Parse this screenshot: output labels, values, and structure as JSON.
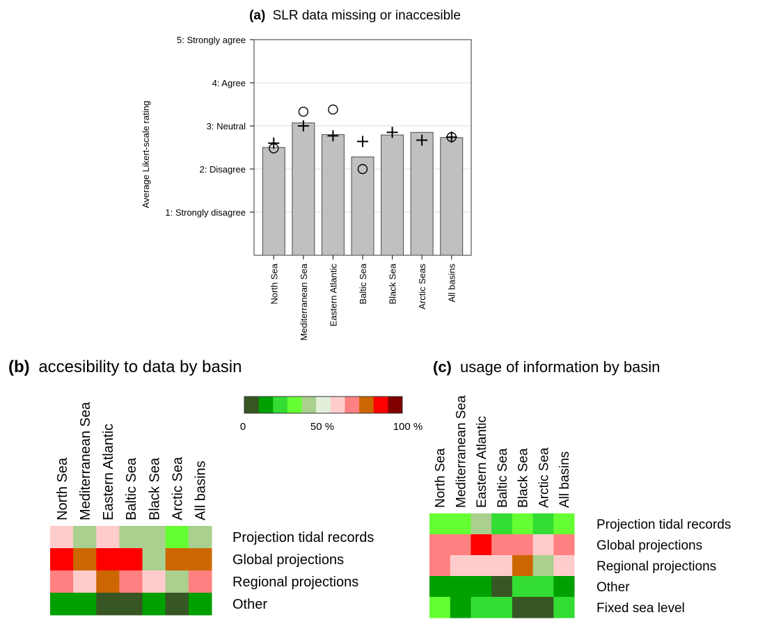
{
  "chart_data": [
    {
      "type": "bar",
      "panel": "(a)",
      "title": "SLR data missing or inaccesible",
      "ylabel": "Average Likert-scale rating",
      "ylim": [
        0,
        5
      ],
      "yticks": [
        {
          "value": 1,
          "label": "1: Strongly disagree"
        },
        {
          "value": 2,
          "label": "2: Disagree"
        },
        {
          "value": 3,
          "label": "3: Neutral"
        },
        {
          "value": 4,
          "label": "4: Agree"
        },
        {
          "value": 5,
          "label": "5: Strongly agree"
        }
      ],
      "grid": true,
      "categories": [
        "North Sea",
        "Mediterranean Sea",
        "Eastern Atlantic",
        "Baltic Sea",
        "Black Sea",
        "Arctic Seas",
        "All basins"
      ],
      "values": [
        2.5,
        3.07,
        2.8,
        2.28,
        2.79,
        2.85,
        2.73
      ],
      "markers": {
        "circle": [
          2.48,
          3.33,
          3.38,
          2.0,
          null,
          null,
          2.74
        ],
        "plus": [
          2.6,
          3.0,
          2.77,
          2.64,
          2.85,
          2.67,
          2.74
        ]
      },
      "colors": {
        "bar": "#c0c0c0",
        "bar_edge": "#4a4a4a"
      }
    },
    {
      "type": "heatmap",
      "panel": "(b)",
      "title": "accesibility to data by basin",
      "columns": [
        "North Sea",
        "Mediterranean Sea",
        "Eastern Atlantic",
        "Baltic Sea",
        "Black Sea",
        "Arctic Sea",
        "All basins"
      ],
      "rows": [
        "Projection tidal records",
        "Global projections",
        "Regional projections",
        "Other"
      ],
      "values": [
        [
          55,
          45,
          55,
          45,
          45,
          35,
          45
        ],
        [
          85,
          75,
          85,
          85,
          45,
          75,
          75
        ],
        [
          65,
          55,
          75,
          65,
          55,
          45,
          65
        ],
        [
          15,
          15,
          5,
          5,
          15,
          5,
          15
        ]
      ]
    },
    {
      "type": "heatmap",
      "panel": "(c)",
      "title": "usage of information by basin",
      "columns": [
        "North Sea",
        "Mediterranean Sea",
        "Eastern Atlantic",
        "Baltic Sea",
        "Black Sea",
        "Arctic Sea",
        "All basins"
      ],
      "rows": [
        "Projection tidal records",
        "Global projections",
        "Regional projections",
        "Other",
        "Fixed sea level"
      ],
      "values": [
        [
          35,
          35,
          45,
          25,
          35,
          25,
          35
        ],
        [
          65,
          65,
          85,
          65,
          65,
          55,
          65
        ],
        [
          65,
          55,
          55,
          55,
          75,
          45,
          55
        ],
        [
          15,
          15,
          15,
          5,
          25,
          25,
          15
        ],
        [
          35,
          15,
          25,
          25,
          5,
          5,
          25
        ]
      ]
    }
  ],
  "colorbar": {
    "labels": {
      "min": "0",
      "mid": "50 %",
      "max": "100 %"
    },
    "range": [
      0,
      100
    ],
    "colors": [
      "#375623",
      "#00a000",
      "#33dd33",
      "#66ff33",
      "#a9d08e",
      "#e2efda",
      "#ffcccc",
      "#ff8080",
      "#cc6600",
      "#ff0000",
      "#800000"
    ]
  }
}
